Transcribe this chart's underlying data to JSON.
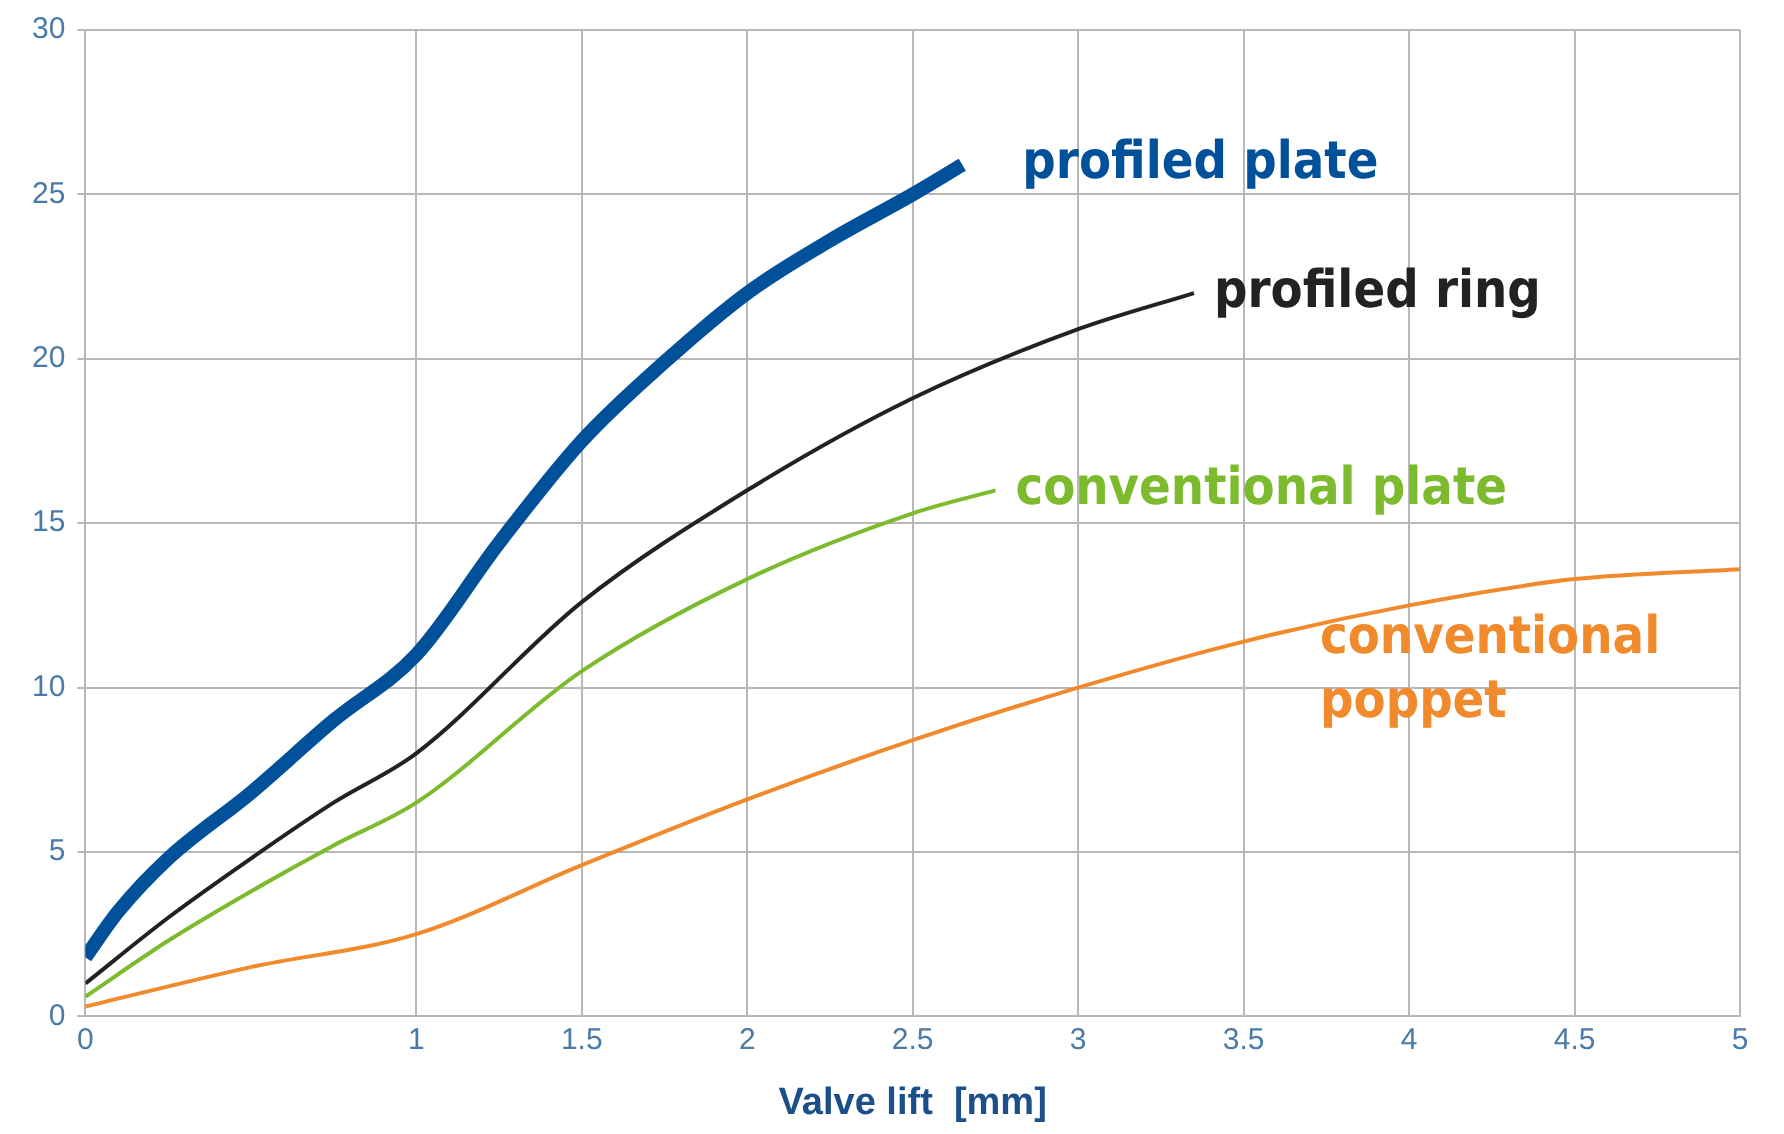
{
  "chart_data": {
    "type": "line",
    "xlabel": "Valve lift  [mm]",
    "xlim": [
      0,
      5
    ],
    "xticks": [
      0,
      1,
      1.5,
      2,
      2.5,
      3,
      3.5,
      4,
      4.5,
      5
    ],
    "ylim": [
      0,
      30
    ],
    "yticks": [
      0,
      5,
      10,
      15,
      20,
      25,
      30
    ],
    "grid": true,
    "legend": false,
    "marker": "none",
    "line_style": "solid",
    "series": [
      {
        "name": "profiled plate",
        "color": "#00509a",
        "x": [
          0,
          0.1,
          0.25,
          0.5,
          0.75,
          1,
          1.25,
          1.5,
          1.75,
          2,
          2.25,
          2.5,
          2.65
        ],
        "values": [
          1.8,
          3.2,
          4.8,
          6.8,
          9,
          11,
          14.4,
          17.5,
          19.9,
          22,
          23.6,
          25,
          25.9
        ]
      },
      {
        "name": "profiled ring",
        "color": "#222222",
        "x": [
          0,
          0.25,
          0.5,
          0.75,
          1,
          1.5,
          2,
          2.5,
          3,
          3.35
        ],
        "values": [
          1,
          3,
          4.8,
          6.5,
          8,
          12.6,
          16,
          18.8,
          20.9,
          22
        ]
      },
      {
        "name": "conventional plate",
        "color": "#7dbb2e",
        "x": [
          0,
          0.25,
          0.5,
          0.75,
          1,
          1.5,
          2,
          2.5,
          2.75
        ],
        "values": [
          0.6,
          2.3,
          3.8,
          5.2,
          6.5,
          10.5,
          13.3,
          15.3,
          16
        ]
      },
      {
        "name": "conventional poppet",
        "color": "#f08a2c",
        "x": [
          0,
          0.5,
          1,
          1.5,
          2,
          2.5,
          3,
          3.5,
          4,
          4.5,
          5
        ],
        "values": [
          0.3,
          1.5,
          2.5,
          4.6,
          6.6,
          8.4,
          10,
          11.4,
          12.5,
          13.3,
          13.6
        ]
      }
    ]
  }
}
